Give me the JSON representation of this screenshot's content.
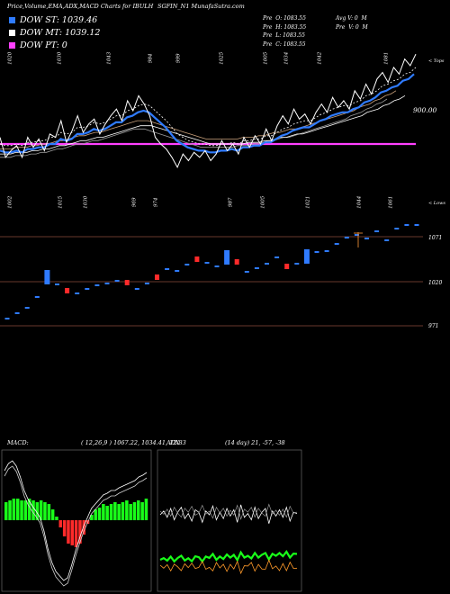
{
  "header": {
    "title": "Price,Volume,EMA,ADX,MACD Charts for IBULH",
    "symbol": "SGFIN_N1 MunafaSutra.com"
  },
  "legend": [
    {
      "label": "DOW ST: 1039.46",
      "color": "#2f7bff"
    },
    {
      "label": "DOW MT: 1039.12",
      "color": "#ffffff"
    },
    {
      "label": "DOW PT: 0",
      "color": "#ff40ff"
    }
  ],
  "ohlc": {
    "col1": "Pre  O: 1083.55\nPre  H: 1083.55\nPre  L: 1083.55\nPre  C: 1083.55",
    "col2": "Avg V: 0  M\nPre  V: 0  M"
  },
  "top_side_label": "< Tops",
  "bottom_side_label": "< Lows",
  "price_last_label": "900.00",
  "candle_axis": [
    "1071",
    "1020",
    "971"
  ],
  "chart_data": [
    {
      "type": "line",
      "name": "price-ema",
      "tops": [
        "1020",
        "1030",
        "1043",
        "984",
        "999",
        "1025",
        "1005",
        "1034",
        "1042",
        "1081"
      ],
      "lows": [
        "1002",
        "1015",
        "1030",
        "969",
        "974",
        "987",
        "1005",
        "1021",
        "1044",
        "1061"
      ],
      "price": [
        880,
        868,
        872,
        875,
        868,
        880,
        874,
        879,
        872,
        882,
        880,
        890,
        877,
        884,
        893,
        883,
        888,
        891,
        882,
        888,
        893,
        897,
        890,
        902,
        896,
        905,
        900,
        893,
        880,
        876,
        873,
        868,
        862,
        870,
        866,
        871,
        868,
        872,
        866,
        870,
        878,
        872,
        876,
        870,
        880,
        874,
        881,
        876,
        885,
        878,
        887,
        893,
        888,
        897,
        891,
        894,
        888,
        895,
        900,
        895,
        904,
        898,
        902,
        897,
        908,
        903,
        912,
        906,
        915,
        919,
        913,
        922,
        918,
        927,
        923,
        930
      ],
      "ema_short": [
        872,
        871,
        871,
        872,
        871,
        873,
        873,
        874,
        874,
        876,
        876,
        879,
        878,
        879,
        882,
        882,
        883,
        885,
        884,
        885,
        887,
        889,
        889,
        892,
        893,
        895,
        896,
        895,
        892,
        889,
        886,
        882,
        878,
        876,
        874,
        873,
        872,
        872,
        871,
        871,
        872,
        872,
        873,
        872,
        874,
        874,
        875,
        875,
        877,
        877,
        879,
        881,
        882,
        884,
        885,
        886,
        886,
        888,
        890,
        891,
        893,
        894,
        895,
        895,
        897,
        898,
        901,
        902,
        904,
        907,
        908,
        910,
        911,
        914,
        915,
        918
      ],
      "ema_long": [
        870,
        870,
        870,
        871,
        871,
        871,
        872,
        872,
        873,
        873,
        874,
        875,
        875,
        876,
        877,
        878,
        878,
        879,
        880,
        880,
        881,
        882,
        883,
        884,
        885,
        886,
        887,
        887,
        887,
        886,
        885,
        884,
        883,
        882,
        881,
        880,
        879,
        878,
        877,
        876,
        876,
        876,
        876,
        876,
        876,
        876,
        877,
        877,
        877,
        878,
        878,
        879,
        880,
        880,
        881,
        882,
        882,
        883,
        884,
        885,
        886,
        887,
        888,
        889,
        890,
        891,
        892,
        893,
        895,
        896,
        897,
        899,
        900,
        902,
        903,
        905
      ],
      "dow_pt_level": 876
    },
    {
      "type": "bar",
      "name": "candles",
      "values": [
        979,
        985,
        991,
        1003,
        1025,
        1017,
        1010,
        1007,
        1012,
        1016,
        1018,
        1021,
        1019,
        1012,
        1018,
        1025,
        1034,
        1032,
        1039,
        1045,
        1041,
        1037,
        1047,
        1042,
        1031,
        1035,
        1040,
        1047,
        1037,
        1040,
        1048,
        1053,
        1054,
        1062,
        1069,
        1072,
        1068,
        1076,
        1066,
        1079,
        1083,
        1083
      ]
    },
    {
      "type": "line",
      "name": "macd",
      "label": "MACD:",
      "params": "( 12,26,9 ) 1067.22,  1034.41,  12.83",
      "histogram": [
        10,
        11,
        12,
        12,
        11,
        11,
        12,
        11,
        10,
        11,
        10,
        9,
        6,
        2,
        -4,
        -9,
        -13,
        -14,
        -15,
        -13,
        -8,
        -2,
        3,
        6,
        7,
        9,
        8,
        9,
        10,
        9,
        10,
        11,
        9,
        10,
        11,
        10,
        12
      ]
    },
    {
      "type": "line",
      "name": "adx",
      "label": "ADX",
      "params": "(14 day) 21,  -57,  -38"
    }
  ]
}
